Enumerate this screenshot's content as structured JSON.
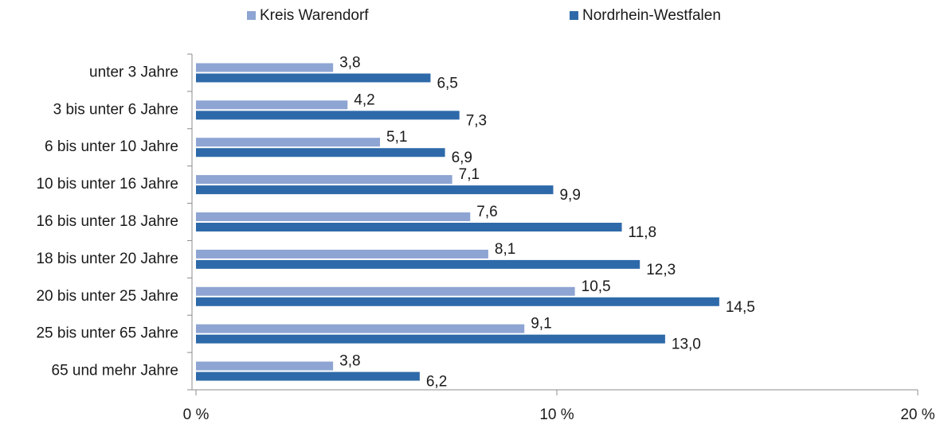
{
  "chart_data": {
    "type": "bar",
    "orientation": "horizontal",
    "categories": [
      "unter 3 Jahre",
      "3 bis unter 6 Jahre",
      "6 bis unter 10 Jahre",
      "10 bis unter 16 Jahre",
      "16 bis unter 18 Jahre",
      "18 bis unter 20 Jahre",
      "20 bis unter 25 Jahre",
      "25 bis unter 65 Jahre",
      "65 und mehr Jahre"
    ],
    "series": [
      {
        "name": "Kreis Warendorf",
        "color": "#8ea5d3",
        "values": [
          3.8,
          4.2,
          5.1,
          7.1,
          7.6,
          8.1,
          10.5,
          9.1,
          3.8
        ],
        "value_labels": [
          "3,8",
          "4,2",
          "5,1",
          "7,1",
          "7,6",
          "8,1",
          "10,5",
          "9,1",
          "3,8"
        ]
      },
      {
        "name": "Nordrhein-Westfalen",
        "color": "#2e6aa9",
        "values": [
          6.5,
          7.3,
          6.9,
          9.9,
          11.8,
          12.3,
          14.5,
          13.0,
          6.2
        ],
        "value_labels": [
          "6,5",
          "7,3",
          "6,9",
          "9,9",
          "11,8",
          "12,3",
          "14,5",
          "13,0",
          "6,2"
        ]
      }
    ],
    "xlim": [
      0,
      20
    ],
    "xticks": [
      {
        "value": 0,
        "label": "0 %"
      },
      {
        "value": 10,
        "label": "10 %"
      },
      {
        "value": 20,
        "label": "20 %"
      }
    ],
    "legend": "top"
  }
}
